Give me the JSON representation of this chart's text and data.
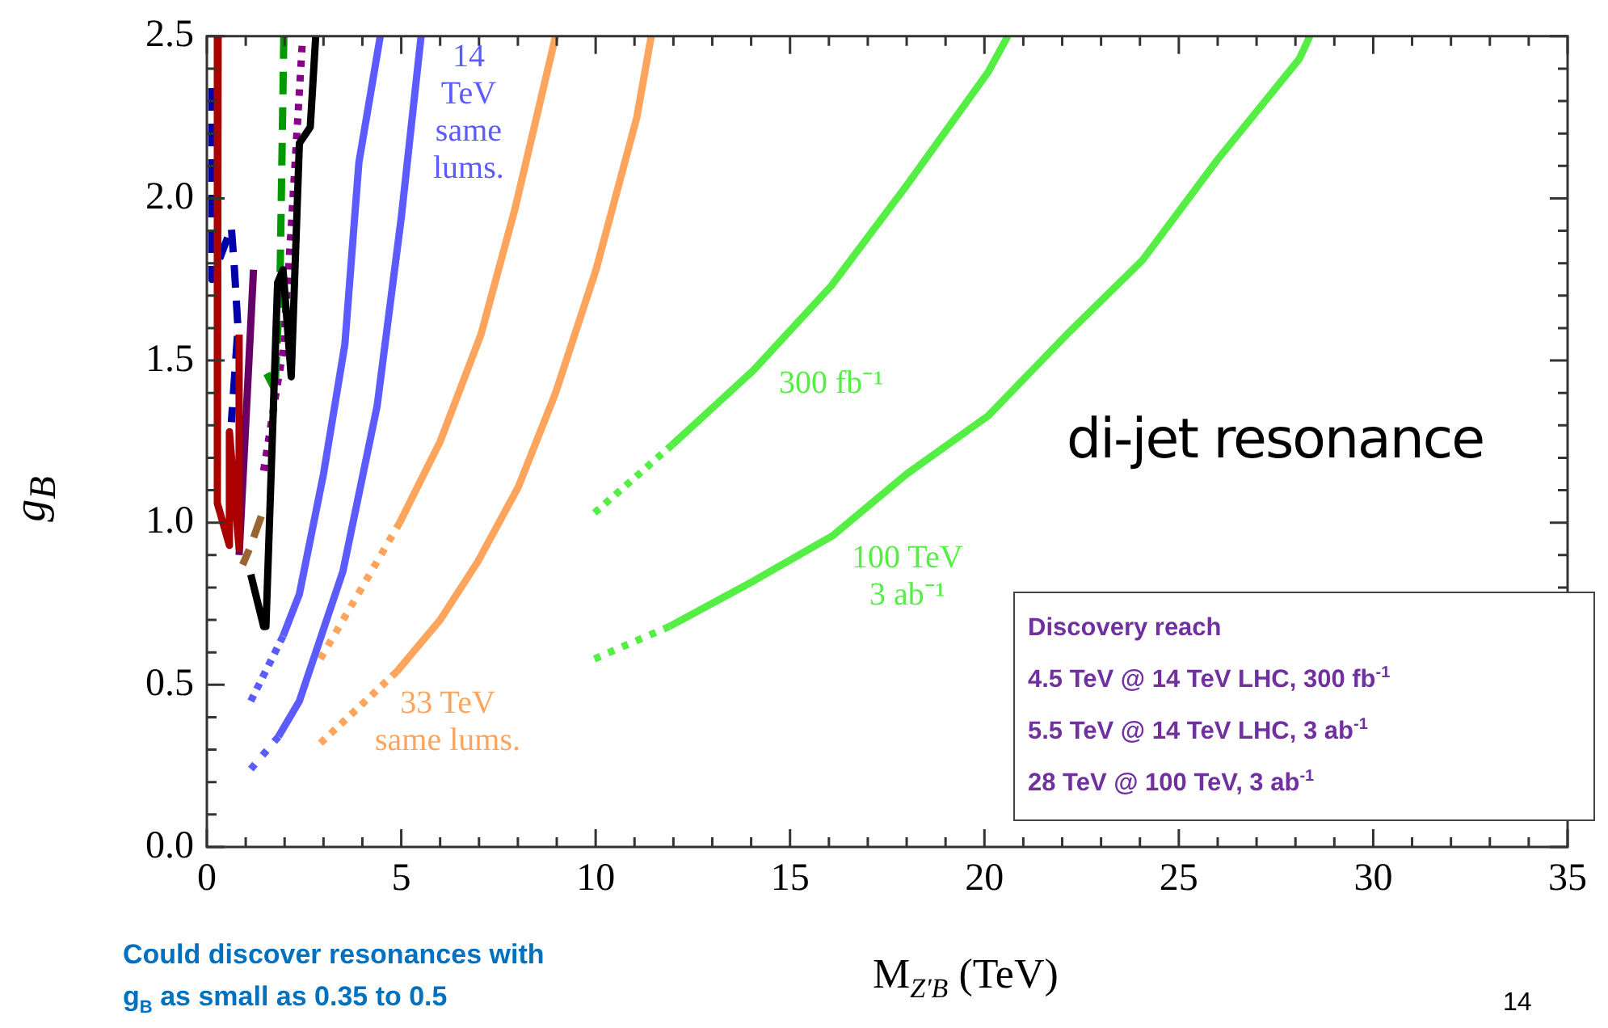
{
  "chart_data": {
    "type": "line",
    "xlabel": "M$_{Z′B}$ (TeV)",
    "ylabel": "g$_{B}$",
    "xlim": [
      0,
      35
    ],
    "ylim": [
      0,
      2.5
    ],
    "xticks": [
      0,
      {
        "value": 1,
        "label": null
      },
      {
        "value": 2,
        "label": null
      },
      {
        "value": 3,
        "label": null
      },
      {
        "value": 4,
        "label": null
      },
      5,
      {
        "value": 6,
        "label": null
      },
      {
        "value": 7,
        "label": null
      },
      {
        "value": 8,
        "label": null
      },
      {
        "value": 9,
        "label": null
      },
      10,
      {
        "value": 11,
        "label": null
      },
      {
        "value": 12,
        "label": null
      },
      {
        "value": 13,
        "label": null
      },
      {
        "value": 14,
        "label": null
      },
      15,
      {
        "value": 16,
        "label": null
      },
      {
        "value": 17,
        "label": null
      },
      {
        "value": 18,
        "label": null
      },
      {
        "value": 19,
        "label": null
      },
      20,
      {
        "value": 21,
        "label": null
      },
      {
        "value": 22,
        "label": null
      },
      {
        "value": 23,
        "label": null
      },
      {
        "value": 24,
        "label": null
      },
      25,
      {
        "value": 26,
        "label": null
      },
      {
        "value": 27,
        "label": null
      },
      {
        "value": 28,
        "label": null
      },
      {
        "value": 29,
        "label": null
      },
      30,
      {
        "value": 31,
        "label": null
      },
      {
        "value": 32,
        "label": null
      },
      {
        "value": 33,
        "label": null
      },
      {
        "value": 34,
        "label": null
      },
      35
    ],
    "yticks": [
      {
        "value": 0,
        "label": "0.0"
      },
      {
        "value": 0.1,
        "label": null
      },
      {
        "value": 0.2,
        "label": null
      },
      {
        "value": 0.3,
        "label": null
      },
      {
        "value": 0.4,
        "label": null
      },
      {
        "value": 0.5,
        "label": "0.5"
      },
      {
        "value": 0.6,
        "label": null
      },
      {
        "value": 0.7,
        "label": null
      },
      {
        "value": 0.8,
        "label": null
      },
      {
        "value": 0.9,
        "label": null
      },
      {
        "value": 1,
        "label": "1.0"
      },
      {
        "value": 1.1,
        "label": null
      },
      {
        "value": 1.2,
        "label": null
      },
      {
        "value": 1.3,
        "label": null
      },
      {
        "value": 1.4,
        "label": null
      },
      {
        "value": 1.5,
        "label": "1.5"
      },
      {
        "value": 1.6,
        "label": null
      },
      {
        "value": 1.7,
        "label": null
      },
      {
        "value": 1.8,
        "label": null
      },
      {
        "value": 1.9,
        "label": null
      },
      {
        "value": 2,
        "label": "2.0"
      },
      {
        "value": 2.1,
        "label": null
      },
      {
        "value": 2.2,
        "label": null
      },
      {
        "value": 2.3,
        "label": null
      },
      {
        "value": 2.4,
        "label": null
      },
      {
        "value": 2.5,
        "label": "2.5"
      }
    ],
    "grid": false,
    "legend": false,
    "marker": "none",
    "series": [
      {
        "color": "#aa0000",
        "line_style": "solid",
        "x": [
          0.29,
          0.25,
          0.29,
          0.58,
          0.58,
          0.83,
          0.83
        ],
        "values": [
          2.5,
          1.5,
          1.06,
          0.93,
          1.28,
          0.92,
          1.58
        ]
      },
      {
        "color": "#0000aa",
        "line_style": "dashed",
        "x": [
          0.13,
          0.13,
          0.63,
          0.7,
          0.8,
          0.63
        ],
        "values": [
          2.34,
          1.75,
          1.91,
          1.8,
          1.6,
          1.31
        ]
      },
      {
        "color": "#660066",
        "line_style": "solid",
        "x": [
          1.2,
          0.83
        ],
        "values": [
          1.78,
          0.9
        ]
      },
      {
        "color": "#996633",
        "line_style": "dashed",
        "x": [
          1.4,
          1.1,
          0.92
        ],
        "values": [
          1.02,
          0.92,
          0.87
        ]
      },
      {
        "color": "#000000",
        "line_style": "solid",
        "x": [
          1.13,
          1.46,
          1.52,
          1.82,
          1.96,
          2.17,
          2.38,
          2.66,
          2.8
        ],
        "values": [
          0.84,
          0.68,
          0.68,
          1.74,
          1.78,
          1.45,
          2.17,
          2.22,
          2.5
        ]
      },
      {
        "color": "#009900",
        "line_style": "dashed",
        "x": [
          1.98,
          1.88,
          1.75,
          1.54
        ],
        "values": [
          2.5,
          1.73,
          1.41,
          1.46
        ]
      },
      {
        "color": "#880088",
        "line_style": "dotted",
        "x": [
          2.45,
          2.17,
          1.96,
          1.82,
          1.46
        ],
        "values": [
          2.47,
          1.91,
          1.53,
          1.43,
          1.16
        ]
      },
      {
        "color": "#5b5bff",
        "line_style": "solid",
        "x": [
          4.46,
          3.91,
          3.55,
          3.0,
          2.38,
          1.96
        ],
        "values": [
          2.5,
          2.11,
          1.55,
          1.15,
          0.78,
          0.65
        ]
      },
      {
        "color": "#5b5bff",
        "line_style": "dotted",
        "x": [
          1.96,
          1.13
        ],
        "values": [
          0.65,
          0.45
        ]
      },
      {
        "color": "#5b5bff",
        "line_style": "solid",
        "x": [
          5.51,
          5.0,
          4.38,
          3.5,
          2.38,
          1.84
        ],
        "values": [
          2.5,
          1.94,
          1.36,
          0.85,
          0.45,
          0.34
        ]
      },
      {
        "color": "#5b5bff",
        "line_style": "dotted",
        "x": [
          1.84,
          1.13
        ],
        "values": [
          0.34,
          0.24
        ]
      },
      {
        "color": "#ffa45c",
        "line_style": "solid",
        "x": [
          8.97,
          7.93,
          7.05,
          6.0,
          4.96
        ],
        "values": [
          2.5,
          1.97,
          1.58,
          1.25,
          1.0
        ]
      },
      {
        "color": "#ffa45c",
        "line_style": "dotted",
        "x": [
          4.96,
          2.92
        ],
        "values": [
          1.0,
          0.58
        ]
      },
      {
        "color": "#ffa45c",
        "line_style": "solid",
        "x": [
          11.43,
          11.06,
          10.01,
          8.97,
          8.01,
          6.97,
          6.0,
          4.88
        ],
        "values": [
          2.5,
          2.25,
          1.78,
          1.4,
          1.11,
          0.88,
          0.7,
          0.54
        ]
      },
      {
        "color": "#ffa45c",
        "line_style": "dotted",
        "x": [
          4.88,
          2.92
        ],
        "values": [
          0.54,
          0.32
        ]
      },
      {
        "color": "#55ee44",
        "line_style": "solid",
        "x": [
          20.6,
          20.1,
          18.0,
          16.06,
          14.06,
          11.97
        ],
        "values": [
          2.5,
          2.39,
          2.04,
          1.73,
          1.47,
          1.24
        ]
      },
      {
        "color": "#55ee44",
        "line_style": "dotted",
        "x": [
          11.97,
          9.97
        ],
        "values": [
          1.24,
          1.03
        ]
      },
      {
        "color": "#55ee44",
        "line_style": "solid",
        "x": [
          28.37,
          28.1,
          26.0,
          24.07,
          22.2,
          20.1,
          18.0,
          16.1,
          14.06,
          11.9
        ],
        "values": [
          2.5,
          2.43,
          2.12,
          1.81,
          1.59,
          1.33,
          1.15,
          0.96,
          0.82,
          0.68
        ]
      },
      {
        "color": "#55ee44",
        "line_style": "dotted",
        "x": [
          11.9,
          9.97
        ],
        "values": [
          0.68,
          0.58
        ]
      }
    ],
    "annotations": [
      "14\nTeV\nsame\nlums.",
      "33 TeV\nsame lums.",
      "300 fb⁻¹",
      "100 TeV\n3 ab⁻¹",
      "di-jet resonance",
      "Discovery reach\n4.5 TeV @ 14 TeV LHC, 300 fb$^{-1}$\n5.5 TeV @ 14 TeV LHC, 3 ab$^{-1}$\n28 TeV @ 100 TeV, 3 ab$^{-1}$",
      "Could discover resonances with\ng$_{B}$ as small as 0.35 to 0.5",
      "14"
    ]
  }
}
